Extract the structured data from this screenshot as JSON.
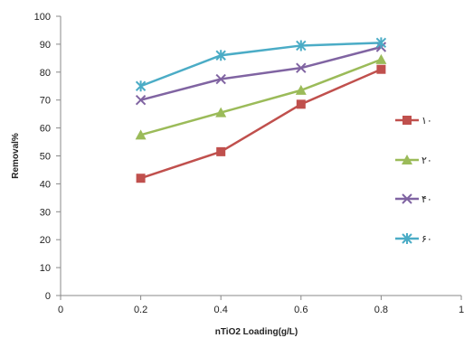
{
  "chart_data": {
    "type": "line",
    "title": "",
    "xlabel": "nTiO2 Loading(g/L)",
    "ylabel": "Removal%",
    "xlim": [
      0,
      1
    ],
    "ylim": [
      0,
      100
    ],
    "x_ticks": [
      "0",
      "0.2",
      "0.4",
      "0.6",
      "0.8",
      "1"
    ],
    "y_ticks": [
      "0",
      "10",
      "20",
      "30",
      "40",
      "50",
      "60",
      "70",
      "80",
      "90",
      "100"
    ],
    "grid": false,
    "legend_position": "right",
    "x": [
      0.2,
      0.4,
      0.6,
      0.8
    ],
    "series": [
      {
        "name": "۱۰",
        "values": [
          42,
          51.5,
          68.5,
          81
        ],
        "color": "#c0504d",
        "marker": "square"
      },
      {
        "name": "۲۰",
        "values": [
          57.5,
          65.5,
          73.5,
          84.5
        ],
        "color": "#9bbb59",
        "marker": "triangle"
      },
      {
        "name": "۴۰",
        "values": [
          70,
          77.5,
          81.5,
          89
        ],
        "color": "#8064a2",
        "marker": "x"
      },
      {
        "name": "۶۰",
        "values": [
          75,
          86,
          89.5,
          90.5
        ],
        "color": "#4bacc6",
        "marker": "star"
      }
    ]
  }
}
